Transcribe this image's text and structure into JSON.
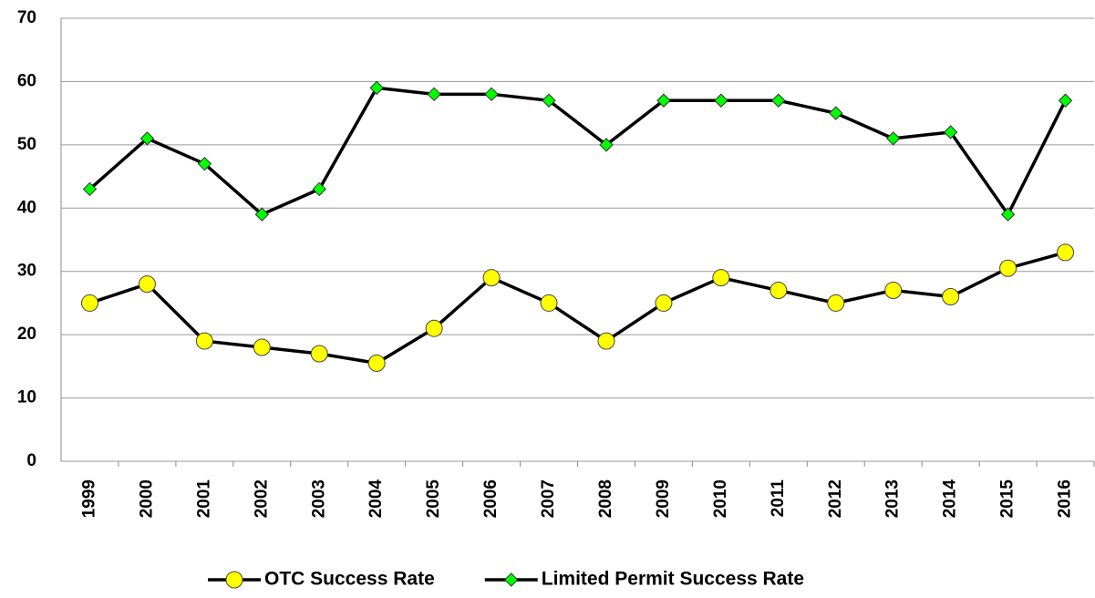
{
  "chart_data": {
    "type": "line",
    "categories": [
      "1999",
      "2000",
      "2001",
      "2002",
      "2003",
      "2004",
      "2005",
      "2006",
      "2007",
      "2008",
      "2009",
      "2010",
      "2011",
      "2012",
      "2013",
      "2014",
      "2015",
      "2016"
    ],
    "series": [
      {
        "name": "OTC Success Rate",
        "color": "#ffff00",
        "marker": "circle",
        "values": [
          25,
          28,
          19,
          18,
          17,
          15.5,
          21,
          29,
          25,
          19,
          25,
          29,
          27,
          25,
          27,
          26,
          30.5,
          33
        ]
      },
      {
        "name": "Limited Permit Success Rate",
        "color": "#00ff00",
        "marker": "diamond",
        "values": [
          43,
          51,
          47,
          39,
          43,
          59,
          58,
          58,
          57,
          50,
          57,
          57,
          57,
          55,
          51,
          52,
          39,
          57
        ]
      }
    ],
    "ylim": [
      0,
      70
    ],
    "yticks": [
      0,
      10,
      20,
      30,
      40,
      50,
      60,
      70
    ],
    "grid": true,
    "legend": "bottom"
  }
}
